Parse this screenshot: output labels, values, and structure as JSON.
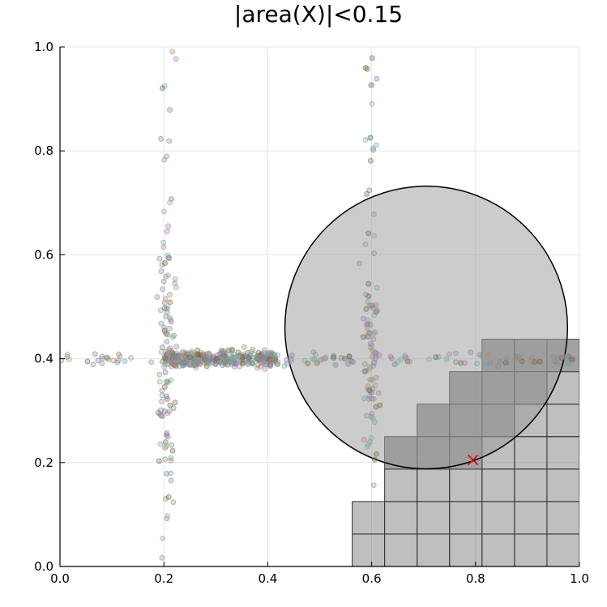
{
  "chart_data": {
    "type": "scatter",
    "title": "|area(X)|<0.15",
    "xlabel": "",
    "ylabel": "",
    "xlim": [
      0,
      1
    ],
    "ylim": [
      0,
      1
    ],
    "x_ticks": [
      "0.0",
      "0.2",
      "0.4",
      "0.6",
      "0.8",
      "1.0"
    ],
    "y_ticks": [
      "0.0",
      "0.2",
      "0.4",
      "0.6",
      "0.8",
      "1.0"
    ],
    "grid": true,
    "legend": "none",
    "colors": {
      "grid": "#e6e6e6",
      "box_fill": "#808080",
      "box_stroke": "#333333",
      "circle_fill": "#999999",
      "marker_x": "#e00000",
      "point_palette": [
        "#8a8a8a",
        "#7a7aa8",
        "#a88a6a",
        "#8aa88a",
        "#a87aa8",
        "#6aa8a8",
        "#6b6b3a"
      ]
    },
    "circle": {
      "cx": 0.705,
      "cy": 0.46,
      "r": 0.272
    },
    "x_marker": {
      "x": 0.795,
      "y": 0.205
    },
    "grid_cells": {
      "cell_size": 0.0625,
      "columns": [
        {
          "x0": 0.5625,
          "y_top": 0.125
        },
        {
          "x0": 0.625,
          "y_top": 0.25
        },
        {
          "x0": 0.6875,
          "y_top": 0.3125
        },
        {
          "x0": 0.75,
          "y_top": 0.375
        },
        {
          "x0": 0.8125,
          "y_top": 0.4375
        },
        {
          "x0": 0.875,
          "y_top": 0.4375
        },
        {
          "x0": 0.9375,
          "y_top": 0.4375
        }
      ],
      "dark_cells": [
        [
          0.625,
          0.1875
        ],
        [
          0.6875,
          0.1875
        ],
        [
          0.6875,
          0.25
        ],
        [
          0.75,
          0.1875
        ],
        [
          0.75,
          0.25
        ],
        [
          0.75,
          0.3125
        ],
        [
          0.8125,
          0.25
        ],
        [
          0.8125,
          0.3125
        ],
        [
          0.8125,
          0.375
        ],
        [
          0.875,
          0.3125
        ],
        [
          0.875,
          0.375
        ],
        [
          0.9375,
          0.375
        ]
      ]
    },
    "clusters": {
      "vertical_1": {
        "x": 0.205,
        "y_range": [
          0.0,
          1.0
        ],
        "spread": 0.008,
        "count": 110
      },
      "vertical_2": {
        "x": 0.6,
        "y_range": [
          0.15,
          1.0
        ],
        "spread": 0.008,
        "count": 95
      },
      "horizontal": {
        "y": 0.398,
        "x_range": [
          0.0,
          1.0
        ],
        "spread": 0.006,
        "count": 140
      },
      "dense_band": {
        "y": 0.4,
        "x_range": [
          0.2,
          0.42
        ],
        "spread": 0.008,
        "count": 320
      }
    }
  }
}
